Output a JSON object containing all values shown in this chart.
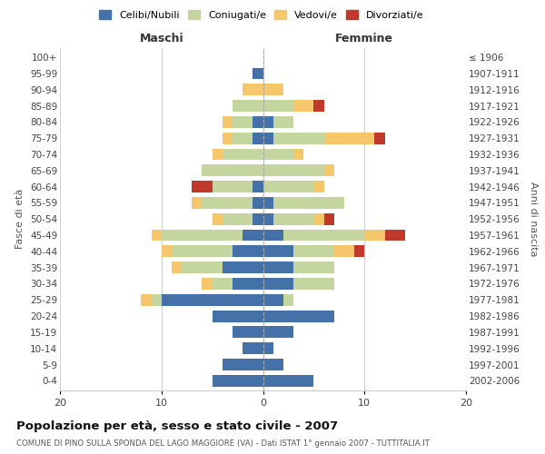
{
  "age_groups": [
    "100+",
    "95-99",
    "90-94",
    "85-89",
    "80-84",
    "75-79",
    "70-74",
    "65-69",
    "60-64",
    "55-59",
    "50-54",
    "45-49",
    "40-44",
    "35-39",
    "30-34",
    "25-29",
    "20-24",
    "15-19",
    "10-14",
    "5-9",
    "0-4"
  ],
  "birth_years": [
    "≤ 1906",
    "1907-1911",
    "1912-1916",
    "1917-1921",
    "1922-1926",
    "1927-1931",
    "1932-1936",
    "1937-1941",
    "1942-1946",
    "1947-1951",
    "1952-1956",
    "1957-1961",
    "1962-1966",
    "1967-1971",
    "1972-1976",
    "1977-1981",
    "1982-1986",
    "1987-1991",
    "1992-1996",
    "1997-2001",
    "2002-2006"
  ],
  "maschi_celibi": [
    0,
    1,
    0,
    0,
    1,
    1,
    0,
    0,
    1,
    1,
    1,
    2,
    3,
    4,
    3,
    10,
    5,
    3,
    2,
    4,
    5
  ],
  "maschi_coniugati": [
    0,
    0,
    0,
    3,
    2,
    2,
    4,
    6,
    4,
    5,
    3,
    8,
    6,
    4,
    2,
    1,
    0,
    0,
    0,
    0,
    0
  ],
  "maschi_vedovi": [
    0,
    0,
    2,
    0,
    1,
    1,
    1,
    0,
    0,
    1,
    1,
    1,
    1,
    1,
    1,
    1,
    0,
    0,
    0,
    0,
    0
  ],
  "maschi_divorziati": [
    0,
    0,
    0,
    0,
    0,
    0,
    0,
    0,
    2,
    0,
    0,
    0,
    0,
    0,
    0,
    0,
    0,
    0,
    0,
    0,
    0
  ],
  "femmine_celibi": [
    0,
    0,
    0,
    0,
    1,
    1,
    0,
    0,
    0,
    1,
    1,
    2,
    3,
    3,
    3,
    2,
    7,
    3,
    1,
    2,
    5
  ],
  "femmine_coniugati": [
    0,
    0,
    0,
    3,
    2,
    5,
    3,
    6,
    5,
    7,
    4,
    8,
    4,
    4,
    4,
    1,
    0,
    0,
    0,
    0,
    0
  ],
  "femmine_vedovi": [
    0,
    0,
    2,
    2,
    0,
    5,
    1,
    1,
    1,
    0,
    1,
    2,
    2,
    0,
    0,
    0,
    0,
    0,
    0,
    0,
    0
  ],
  "femmine_divorziati": [
    0,
    0,
    0,
    1,
    0,
    1,
    0,
    0,
    0,
    0,
    1,
    2,
    1,
    0,
    0,
    0,
    0,
    0,
    0,
    0,
    0
  ],
  "color_celibi": "#4472a8",
  "color_coniugati": "#c5d5a0",
  "color_vedovi": "#f5c76a",
  "color_divorziati": "#c0392b",
  "title": "Popolazione per età, sesso e stato civile - 2007",
  "subtitle": "COMUNE DI PINO SULLA SPONDA DEL LAGO MAGGIORE (VA) - Dati ISTAT 1° gennaio 2007 - TUTTITALIA.IT",
  "xlabel_left": "Maschi",
  "xlabel_right": "Femmine",
  "ylabel_left": "Fasce di età",
  "ylabel_right": "Anni di nascita",
  "xlim": 20,
  "background_color": "#ffffff",
  "grid_color": "#cccccc"
}
